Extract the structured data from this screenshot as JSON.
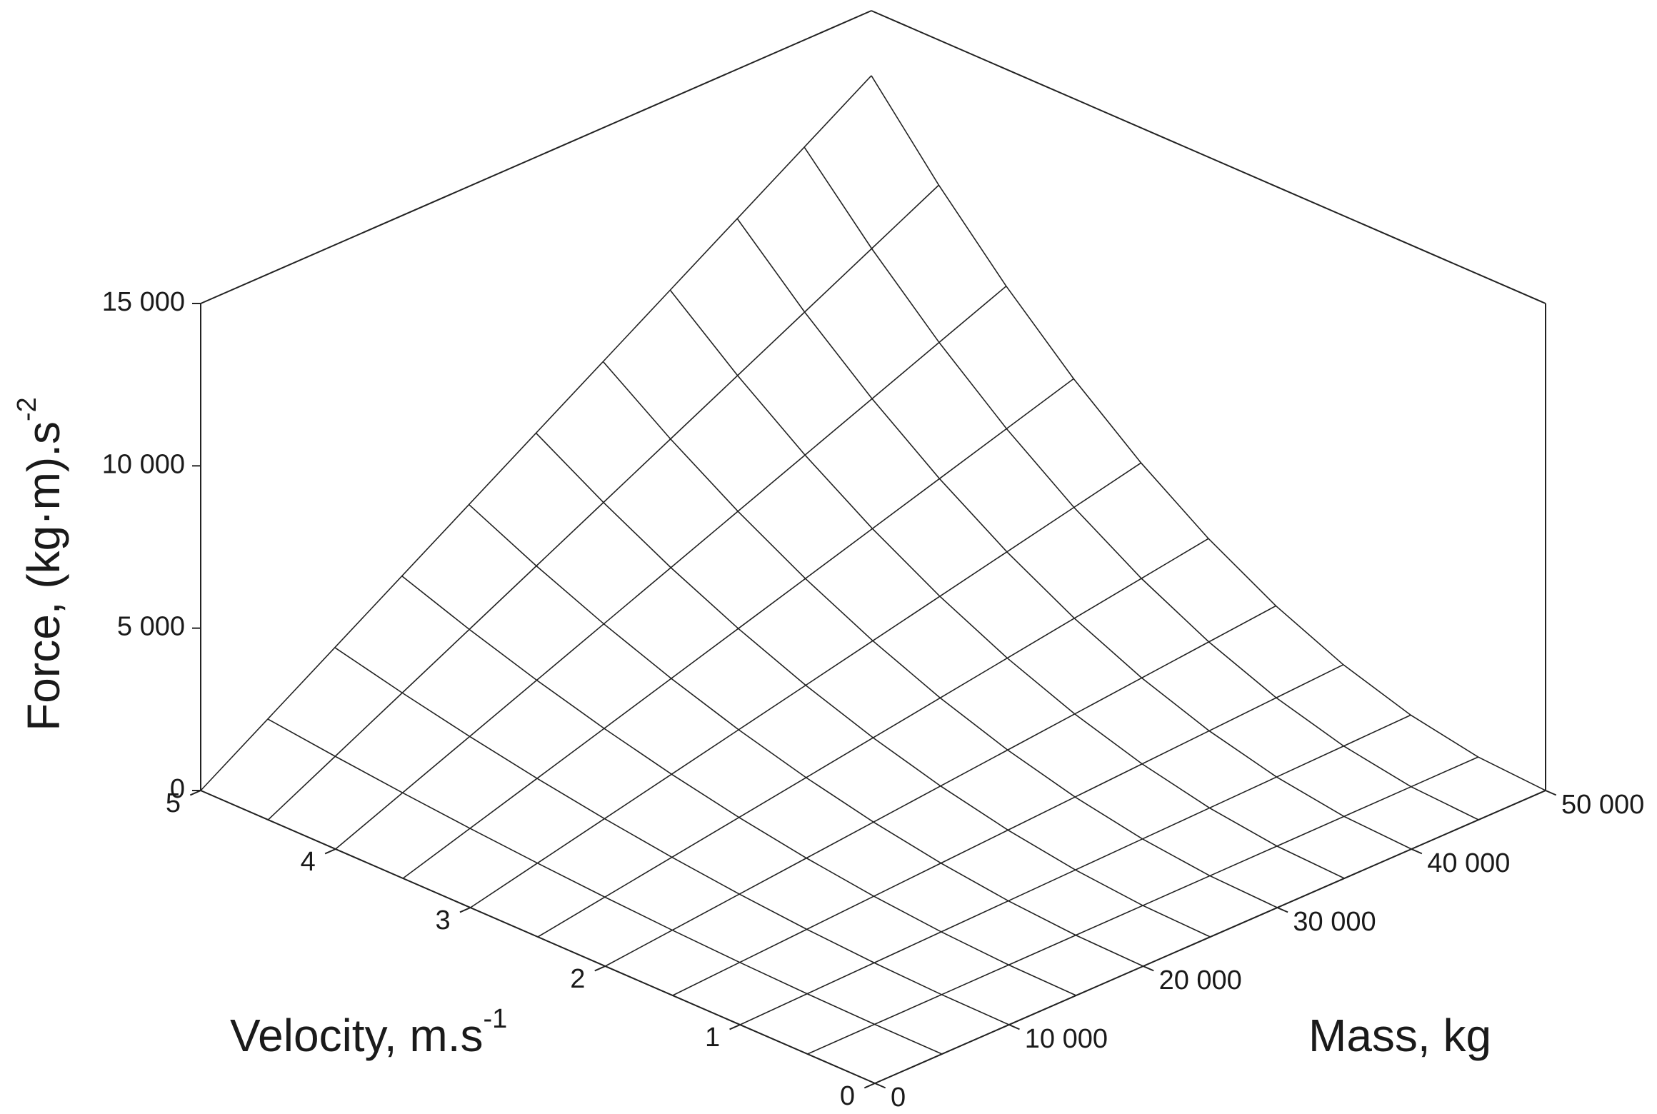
{
  "chart_data": {
    "type": "surface",
    "xlabel": {
      "text": "Mass, kg"
    },
    "ylabel": {
      "text": "Velocity, m.s",
      "sup": "-1"
    },
    "zlabel": {
      "text": "Force, (kg·m).s",
      "sup": "-2"
    },
    "x": [
      0,
      5000,
      10000,
      15000,
      20000,
      25000,
      30000,
      35000,
      40000,
      45000,
      50000
    ],
    "y": [
      0,
      0.5,
      1,
      1.5,
      2,
      2.5,
      3,
      3.5,
      4,
      4.5,
      5
    ],
    "z": [
      [
        0,
        0,
        0,
        0,
        0,
        0,
        0,
        0,
        0,
        0,
        0
      ],
      [
        0,
        13,
        52,
        117,
        208,
        325,
        468,
        637,
        832,
        1053,
        1300
      ],
      [
        0,
        26,
        104,
        234,
        416,
        650,
        936,
        1274,
        1664,
        2106,
        2600
      ],
      [
        0,
        39,
        156,
        351,
        624,
        975,
        1404,
        1911,
        2496,
        3159,
        3900
      ],
      [
        0,
        52,
        208,
        468,
        832,
        1300,
        1872,
        2548,
        3328,
        4212,
        5200
      ],
      [
        0,
        65,
        260,
        585,
        1040,
        1625,
        2340,
        3185,
        4160,
        5265,
        6500
      ],
      [
        0,
        78,
        312,
        702,
        1248,
        1950,
        2808,
        3822,
        4992,
        6318,
        7800
      ],
      [
        0,
        91,
        364,
        819,
        1456,
        2275,
        3276,
        4459,
        5824,
        7371,
        9100
      ],
      [
        0,
        104,
        416,
        936,
        1664,
        2600,
        3744,
        5096,
        6656,
        8424,
        10400
      ],
      [
        0,
        117,
        468,
        1053,
        1872,
        2925,
        4212,
        5733,
        7488,
        9477,
        11700
      ],
      [
        0,
        130,
        520,
        1170,
        2080,
        3250,
        4680,
        6370,
        8320,
        10530,
        13000
      ]
    ],
    "xlim": [
      0,
      50000
    ],
    "xticks": [
      0,
      {
        "value": 10000,
        "label": "10 000"
      },
      {
        "value": 20000,
        "label": "20 000"
      },
      {
        "value": 30000,
        "label": "30 000"
      },
      {
        "value": 40000,
        "label": "40 000"
      },
      {
        "value": 50000,
        "label": "50 000"
      }
    ],
    "ylim": [
      0,
      5
    ],
    "yticks": [
      0,
      1,
      2,
      3,
      4,
      5
    ],
    "zlim": [
      0,
      15000
    ],
    "zticks": [
      0,
      {
        "value": 5000,
        "label": "5 000"
      },
      {
        "value": 10000,
        "label": "10 000"
      },
      {
        "value": 15000,
        "label": "15 000"
      }
    ],
    "color": "#222222"
  }
}
